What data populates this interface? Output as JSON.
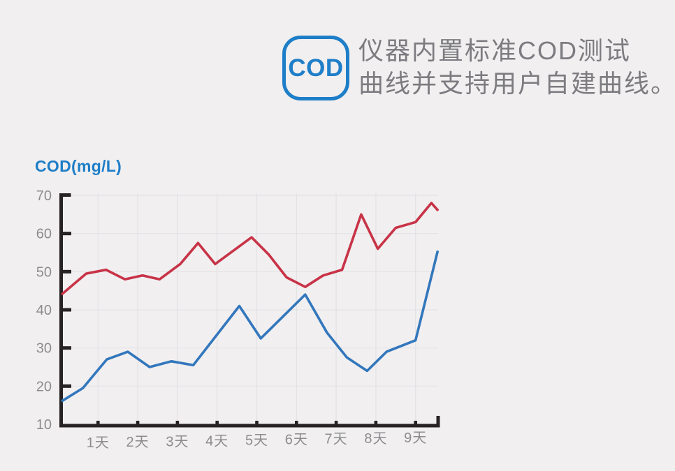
{
  "page": {
    "background": "#f1eff0"
  },
  "header": {
    "badge_label": "COD",
    "line1": "仪器内置标准COD测试",
    "line2": "曲线并支持用户自建曲线。",
    "accent_color": "#1e7ec8",
    "text_color": "#7c7b7f"
  },
  "chart_data": {
    "type": "line",
    "title": "COD(mg/L)",
    "xlabel": "",
    "ylabel": "COD(mg/L)",
    "x_tick_labels": [
      "1天",
      "2天",
      "3天",
      "4天",
      "5天",
      "6天",
      "7天",
      "8天",
      "9天"
    ],
    "y_ticks": [
      70,
      60,
      50,
      40,
      30,
      20,
      10
    ],
    "ylim": [
      10,
      70
    ],
    "x_range_days": [
      0.08,
      9.57
    ],
    "grid": true,
    "legend": "none",
    "colors": {
      "axis": "#262223",
      "grid": "#e3e2e6",
      "tick_label": "#8c8c8e"
    },
    "series": [
      {
        "name": "red-line",
        "color": "#c83347",
        "points": [
          [
            0.08,
            44
          ],
          [
            0.7,
            49.5
          ],
          [
            1.2,
            50.5
          ],
          [
            1.68,
            48
          ],
          [
            2.12,
            49
          ],
          [
            2.55,
            48
          ],
          [
            3.07,
            52
          ],
          [
            3.52,
            57.5
          ],
          [
            3.95,
            52
          ],
          [
            4.87,
            59
          ],
          [
            5.3,
            54.5
          ],
          [
            5.75,
            48.5
          ],
          [
            6.22,
            46
          ],
          [
            6.67,
            49
          ],
          [
            7.15,
            50.5
          ],
          [
            7.63,
            65
          ],
          [
            8.05,
            56
          ],
          [
            8.5,
            61.5
          ],
          [
            9.0,
            63
          ],
          [
            9.4,
            68
          ],
          [
            9.57,
            66
          ]
        ]
      },
      {
        "name": "blue-line",
        "color": "#3377bc",
        "points": [
          [
            0.08,
            16
          ],
          [
            0.62,
            19.5
          ],
          [
            1.22,
            27
          ],
          [
            1.75,
            29
          ],
          [
            2.3,
            25
          ],
          [
            2.85,
            26.5
          ],
          [
            3.4,
            25.5
          ],
          [
            4.56,
            41
          ],
          [
            5.1,
            32.5
          ],
          [
            6.22,
            44
          ],
          [
            6.77,
            34
          ],
          [
            7.27,
            27.5
          ],
          [
            7.78,
            24
          ],
          [
            8.27,
            29
          ],
          [
            9.0,
            32
          ],
          [
            9.56,
            55.5
          ]
        ]
      }
    ]
  }
}
